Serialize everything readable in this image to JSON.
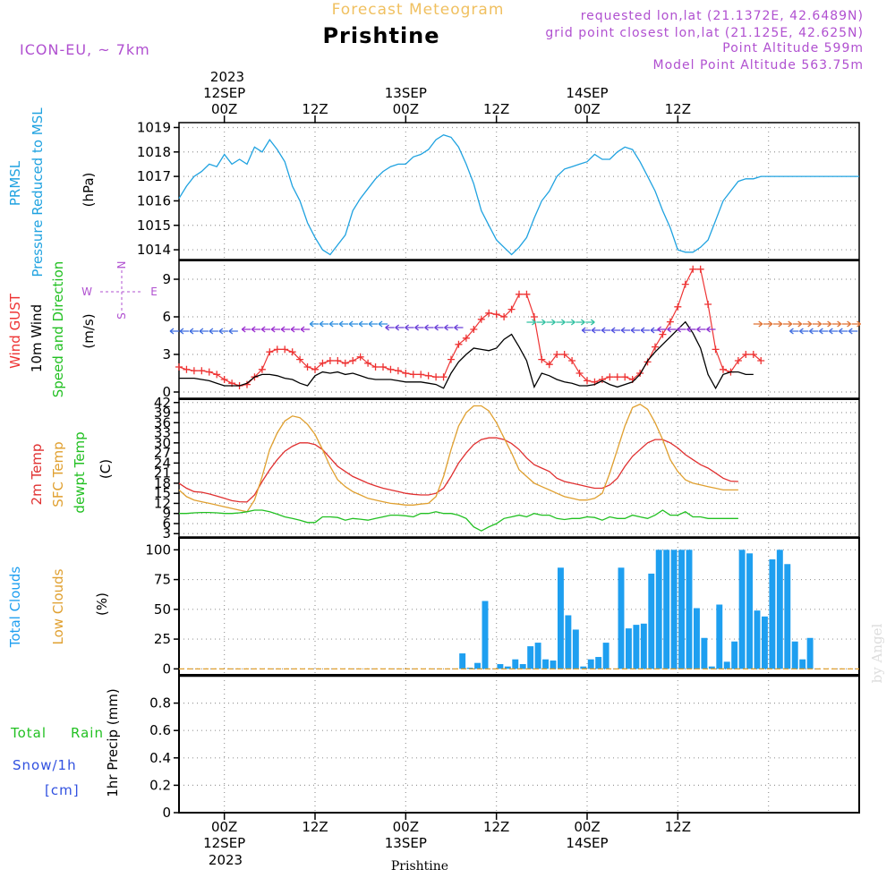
{
  "header": {
    "title": "Prishtine",
    "subtitle": "Forecast Meteogram",
    "model": "ICON-EU, ~ 7km",
    "requested": "requested lon,lat (21.1372E, 42.6489N)",
    "gridpoint": "grid point closest lon,lat (21.125E, 42.625N)",
    "point_alt": "Point Altitude 599m",
    "model_alt": "Model Point Altitude 563.75m",
    "credit": "by Angel",
    "footer": "Prishtine"
  },
  "top_axis": {
    "year": "2023",
    "labels": [
      {
        "day": "12SEP",
        "hour": "00Z"
      },
      {
        "day": "",
        "hour": "12Z"
      },
      {
        "day": "13SEP",
        "hour": "00Z"
      },
      {
        "day": "",
        "hour": "12Z"
      },
      {
        "day": "14SEP",
        "hour": "00Z"
      },
      {
        "day": "",
        "hour": "12Z"
      }
    ]
  },
  "bottom_axis": {
    "year": "2023",
    "labels": [
      {
        "day": "12SEP",
        "hour": "00Z"
      },
      {
        "day": "",
        "hour": "12Z"
      },
      {
        "day": "13SEP",
        "hour": "00Z"
      },
      {
        "day": "",
        "hour": "12Z"
      },
      {
        "day": "14SEP",
        "hour": "00Z"
      },
      {
        "day": "",
        "hour": "12Z"
      }
    ]
  },
  "panel_labels": {
    "pressure": {
      "line1": "PRMSL",
      "line2": "Pressure Reduced to MSL",
      "unit": "(hPa)"
    },
    "wind": {
      "gust": "Wind GUST",
      "wind10": "10m Wind",
      "speed": "Speed and Direction",
      "unit": "(m/s)",
      "compass_n": "N",
      "compass_s": "S",
      "compass_e": "E",
      "compass_w": "W"
    },
    "temp": {
      "t2m": "2m Temp",
      "sfc": "SFC Temp",
      "dew": "dewpt Temp",
      "unit": "(C)"
    },
    "clouds": {
      "total": "Total Clouds",
      "low": "Low Clouds",
      "unit": "(%)"
    },
    "precip": {
      "total": "Total",
      "rain": "Rain",
      "snow": "Snow/1h",
      "cm": "[cm]",
      "ylabel": "1hr Precip (mm)"
    }
  },
  "colors": {
    "pressure": "#1fa2e0",
    "gust": "#ee3333",
    "wind": "#000000",
    "t2m": "#e03030",
    "sfc": "#e0a030",
    "dew": "#22c022",
    "clouds": "#1e9ff0",
    "magenta": "#b050d0",
    "green": "#22c022",
    "blue": "#3050e0",
    "orange": "#f0c060"
  },
  "chart_data": [
    {
      "type": "line",
      "title": "PRMSL Pressure Reduced to MSL",
      "ylabel": "(hPa)",
      "x_hours": [
        -6,
        -5,
        -4,
        -3,
        -2,
        -1,
        0,
        1,
        2,
        3,
        4,
        5,
        6,
        7,
        8,
        9,
        10,
        11,
        12,
        13,
        14,
        15,
        16,
        17,
        18,
        19,
        20,
        21,
        22,
        23,
        24,
        25,
        26,
        27,
        28,
        29,
        30,
        31,
        32,
        33,
        34,
        35,
        36,
        37,
        38,
        39,
        40,
        41,
        42,
        43,
        44,
        45,
        46,
        47,
        48,
        49,
        50,
        51,
        52,
        53,
        54,
        55,
        56,
        57,
        58,
        59,
        60,
        61,
        62,
        63,
        64,
        65,
        66,
        67,
        68,
        69,
        70,
        71,
        72,
        73,
        74,
        75,
        76,
        77,
        78,
        79,
        80,
        81,
        82,
        83,
        84
      ],
      "values": [
        1016.1,
        1016.6,
        1017.0,
        1017.2,
        1017.5,
        1017.4,
        1017.9,
        1017.5,
        1017.7,
        1017.5,
        1018.2,
        1018.0,
        1018.5,
        1018.1,
        1017.6,
        1016.6,
        1016.0,
        1015.1,
        1014.5,
        1014.0,
        1013.8,
        1014.2,
        1014.6,
        1015.6,
        1016.1,
        1016.5,
        1016.9,
        1017.2,
        1017.4,
        1017.5,
        1017.5,
        1017.8,
        1017.9,
        1018.1,
        1018.5,
        1018.7,
        1018.6,
        1018.2,
        1017.5,
        1016.7,
        1015.6,
        1015.0,
        1014.4,
        1014.1,
        1013.8,
        1014.1,
        1014.5,
        1015.3,
        1016.0,
        1016.4,
        1017.0,
        1017.3,
        1017.4,
        1017.5,
        1017.6,
        1017.9,
        1017.7,
        1017.7,
        1018.0,
        1018.2,
        1018.1,
        1017.6,
        1017.0,
        1016.4,
        1015.6,
        1014.9,
        1014.0,
        1013.9,
        1013.9,
        1014.1,
        1014.4,
        1015.2,
        1016.0,
        1016.4,
        1016.8,
        1016.9,
        1016.9,
        1017.0,
        1017.0,
        1017.0,
        1017.0,
        1017.0,
        1017.0,
        1017.0,
        1017.0,
        1017.0,
        1017.0,
        1017.0,
        1017.0,
        1017.0,
        1017.0
      ],
      "ylim": [
        1013.6,
        1019.2
      ],
      "yticks": [
        1014,
        1015,
        1016,
        1017,
        1018,
        1019
      ]
    },
    {
      "type": "line",
      "title": "Wind GUST / 10m Wind Speed and Direction",
      "ylabel": "(m/s)",
      "series": [
        {
          "name": "Wind GUST",
          "values": [
            2.0,
            1.8,
            1.7,
            1.7,
            1.6,
            1.4,
            1.0,
            0.7,
            0.5,
            0.6,
            1.2,
            1.8,
            3.2,
            3.4,
            3.4,
            3.2,
            2.6,
            2.0,
            1.8,
            2.3,
            2.5,
            2.5,
            2.3,
            2.5,
            2.8,
            2.3,
            2.0,
            2.0,
            1.8,
            1.7,
            1.5,
            1.4,
            1.4,
            1.3,
            1.2,
            1.2,
            2.6,
            3.8,
            4.3,
            5.0,
            5.8,
            6.3,
            6.2,
            6.0,
            6.6,
            7.8,
            7.8,
            6.0,
            2.6,
            2.2,
            3.0,
            3.0,
            2.5,
            1.5,
            0.9,
            0.8,
            1.0,
            1.2,
            1.2,
            1.2,
            1.0,
            1.5,
            2.4,
            3.6,
            4.6,
            5.6,
            6.8,
            8.6,
            9.8,
            9.8,
            7.0,
            3.4,
            1.8,
            1.6,
            2.5,
            3.0,
            3.0,
            2.5
          ],
          "hours_start": -6
        },
        {
          "name": "10m Wind",
          "values": [
            1.1,
            1.1,
            1.1,
            1.0,
            0.9,
            0.7,
            0.5,
            0.5,
            0.5,
            0.7,
            1.2,
            1.4,
            1.4,
            1.3,
            1.1,
            1.0,
            0.7,
            0.5,
            1.3,
            1.6,
            1.5,
            1.6,
            1.4,
            1.5,
            1.3,
            1.1,
            1.0,
            1.0,
            1.0,
            0.9,
            0.8,
            0.8,
            0.8,
            0.7,
            0.6,
            0.3,
            1.5,
            2.4,
            3.0,
            3.5,
            3.4,
            3.3,
            3.5,
            4.2,
            4.6,
            3.6,
            2.5,
            0.4,
            1.5,
            1.3,
            1.0,
            0.8,
            0.7,
            0.5,
            0.5,
            0.6,
            0.9,
            0.6,
            0.4,
            0.6,
            0.8,
            1.4,
            2.5,
            3.2,
            3.8,
            4.4,
            5.0,
            5.6,
            4.7,
            3.5,
            1.4,
            0.3,
            1.4,
            1.6,
            1.6,
            1.4,
            1.4
          ],
          "hours_start": -6
        }
      ],
      "ylim": [
        -0.5,
        10.5
      ],
      "yticks": [
        0,
        3,
        6,
        9
      ]
    },
    {
      "type": "line",
      "title": "2m Temp / SFC Temp / dewpt Temp",
      "ylabel": "(C)",
      "series": [
        {
          "name": "2m Temp",
          "values": [
            18,
            16.5,
            15.5,
            15.3,
            14.8,
            14.2,
            13.5,
            12.8,
            12.5,
            12.4,
            14.5,
            18.5,
            22,
            25,
            27.5,
            29,
            30,
            30,
            29.5,
            28,
            25.5,
            23,
            21.5,
            20,
            19,
            18,
            17.2,
            16.5,
            16,
            15.5,
            15,
            14.7,
            14.5,
            14.5,
            15,
            16.5,
            20,
            24,
            27,
            29.5,
            31,
            31.5,
            31.5,
            31,
            29.8,
            28,
            25.5,
            23.5,
            22.5,
            21.5,
            19.5,
            18.5,
            18,
            17.5,
            17,
            16.5,
            16.5,
            17.5,
            19.5,
            23,
            26,
            28,
            30,
            31,
            31,
            30,
            28.5,
            26.5,
            25,
            23.5,
            22.5,
            21,
            19.5,
            18.6,
            18.5
          ],
          "hours_start": -6
        },
        {
          "name": "SFC Temp",
          "values": [
            16,
            14,
            13,
            12.5,
            12,
            11.5,
            11,
            10.5,
            10,
            9.5,
            13,
            20,
            28,
            33,
            36.5,
            38,
            37.5,
            35.5,
            32.5,
            28,
            23,
            19,
            17,
            15.5,
            14.5,
            13.5,
            13,
            12.5,
            12,
            11.8,
            11.5,
            11.5,
            11.8,
            12,
            14,
            20,
            28,
            35,
            39,
            41,
            41,
            39.5,
            36,
            31.5,
            27,
            22,
            20,
            18,
            17,
            16,
            15,
            14,
            13.5,
            13,
            13,
            13.5,
            15,
            21,
            28,
            35,
            40.5,
            41.5,
            40,
            36,
            31,
            25,
            21.5,
            19,
            18,
            17.5,
            17,
            16.5,
            16,
            16,
            16
          ],
          "hours_start": -6
        },
        {
          "name": "dewpt Temp",
          "values": [
            9,
            9,
            9.2,
            9.3,
            9.3,
            9.2,
            9,
            9,
            9.2,
            9.5,
            10,
            10,
            9.5,
            8.8,
            8,
            7.5,
            7,
            6.3,
            6.3,
            8,
            8,
            7.8,
            7,
            7.5,
            7.3,
            7,
            7.5,
            8,
            8.5,
            8.5,
            8.3,
            8,
            9,
            9,
            9.5,
            9,
            9,
            8.5,
            7.5,
            5,
            3.8,
            5,
            6,
            7.5,
            8,
            8.5,
            8,
            9,
            8.5,
            8.5,
            7.5,
            7.2,
            7.5,
            7.5,
            8,
            7.8,
            7,
            8,
            7.5,
            7.5,
            8.5,
            8,
            7.5,
            8.5,
            10,
            8.5,
            8.5,
            9.5,
            8,
            8,
            7.5,
            7.5,
            7.5,
            7.5,
            7.5
          ],
          "hours_start": -6
        }
      ],
      "ylim": [
        2,
        43
      ],
      "yticks": [
        3,
        6,
        9,
        12,
        15,
        18,
        21,
        24,
        27,
        30,
        33,
        36,
        39,
        42
      ]
    },
    {
      "type": "bar",
      "title": "Total Clouds / Low Clouds",
      "ylabel": "(%)",
      "hours_start": -6,
      "values": [
        0,
        0,
        0,
        0,
        0,
        0,
        0,
        0,
        0,
        0,
        0,
        0,
        0,
        0,
        0,
        0,
        0,
        0,
        0,
        0,
        0,
        0,
        0,
        0,
        0,
        0,
        0,
        0,
        0,
        0,
        0,
        0,
        0,
        0,
        0,
        0,
        0,
        13,
        1,
        5,
        57,
        0,
        4,
        2,
        8,
        4,
        19,
        22,
        8,
        7,
        85,
        45,
        33,
        2,
        8,
        10,
        22,
        0,
        85,
        34,
        37,
        38,
        80,
        100,
        100,
        100,
        100,
        100,
        51,
        26,
        2,
        54,
        6,
        23,
        100,
        97,
        49,
        44,
        92,
        100,
        88,
        23,
        8,
        26
      ],
      "ylim": [
        -5,
        110
      ],
      "yticks": [
        0,
        25,
        50,
        75,
        100
      ]
    },
    {
      "type": "line",
      "title": "Total Rain / Snow/1h",
      "ylabel": "1hr Precip (mm)",
      "values": [],
      "ylim": [
        0,
        1.0
      ],
      "yticks": [
        0,
        0.2,
        0.4,
        0.6,
        0.8
      ],
      "ytick_labels": [
        "0",
        "0.2",
        "0.4",
        "0.6",
        "0.8"
      ]
    }
  ]
}
